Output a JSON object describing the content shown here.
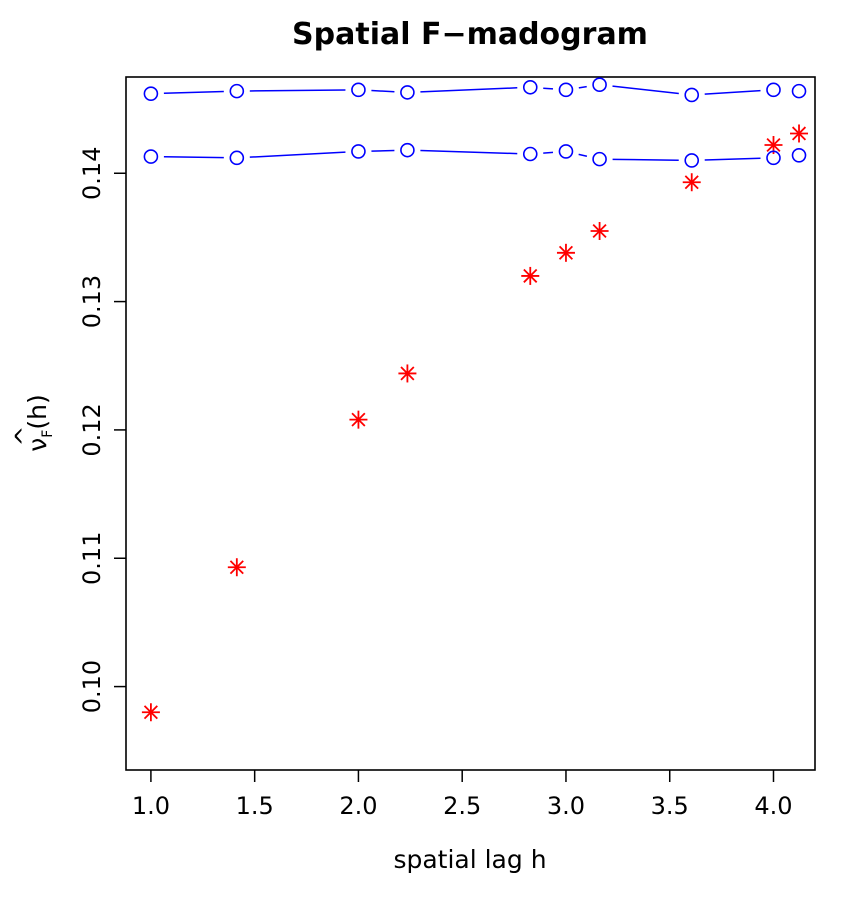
{
  "chart_data": {
    "type": "scatter",
    "title": "Spatial F−madogram",
    "xlabel": "spatial lag h",
    "ylabel": "ν̂F(h)",
    "ylabel_parts": {
      "symbol": "ν",
      "subscript": "F",
      "suffix": "(h)"
    },
    "xlim": [
      0.88,
      4.2
    ],
    "ylim": [
      0.0935,
      0.1475
    ],
    "xticks": [
      1.0,
      1.5,
      2.0,
      2.5,
      3.0,
      3.5,
      4.0
    ],
    "xtick_labels": [
      "1.0",
      "1.5",
      "2.0",
      "2.5",
      "3.0",
      "3.5",
      "4.0"
    ],
    "yticks": [
      0.1,
      0.11,
      0.12,
      0.13,
      0.14
    ],
    "ytick_labels": [
      "0.10",
      "0.11",
      "0.12",
      "0.13",
      "0.14"
    ],
    "grid": false,
    "series": [
      {
        "marker": "asterisk",
        "color": "#ff0000",
        "x": [
          1.0,
          1.414,
          2.0,
          2.236,
          2.828,
          3.0,
          3.162,
          3.606,
          4.0,
          4.123
        ],
        "y": [
          0.098,
          0.1093,
          0.1208,
          0.1244,
          0.132,
          0.1338,
          0.1355,
          0.1393,
          0.1422,
          0.1431
        ]
      },
      {
        "marker": "circle",
        "line": true,
        "color": "#0000ff",
        "x": [
          1.0,
          1.414,
          2.0,
          2.236,
          2.828,
          3.0,
          3.162,
          3.606,
          4.0,
          4.123
        ],
        "y": [
          0.1462,
          0.1464,
          0.1465,
          0.1463,
          0.1467,
          0.1465,
          0.1469,
          0.1461,
          0.1465,
          0.1464
        ]
      },
      {
        "marker": "circle",
        "line": true,
        "color": "#0000ff",
        "x": [
          1.0,
          1.414,
          2.0,
          2.236,
          2.828,
          3.0,
          3.162,
          3.606,
          4.0,
          4.123
        ],
        "y": [
          0.1413,
          0.1412,
          0.1417,
          0.1418,
          0.1415,
          0.1417,
          0.1411,
          0.141,
          0.1412,
          0.1414
        ]
      }
    ]
  }
}
